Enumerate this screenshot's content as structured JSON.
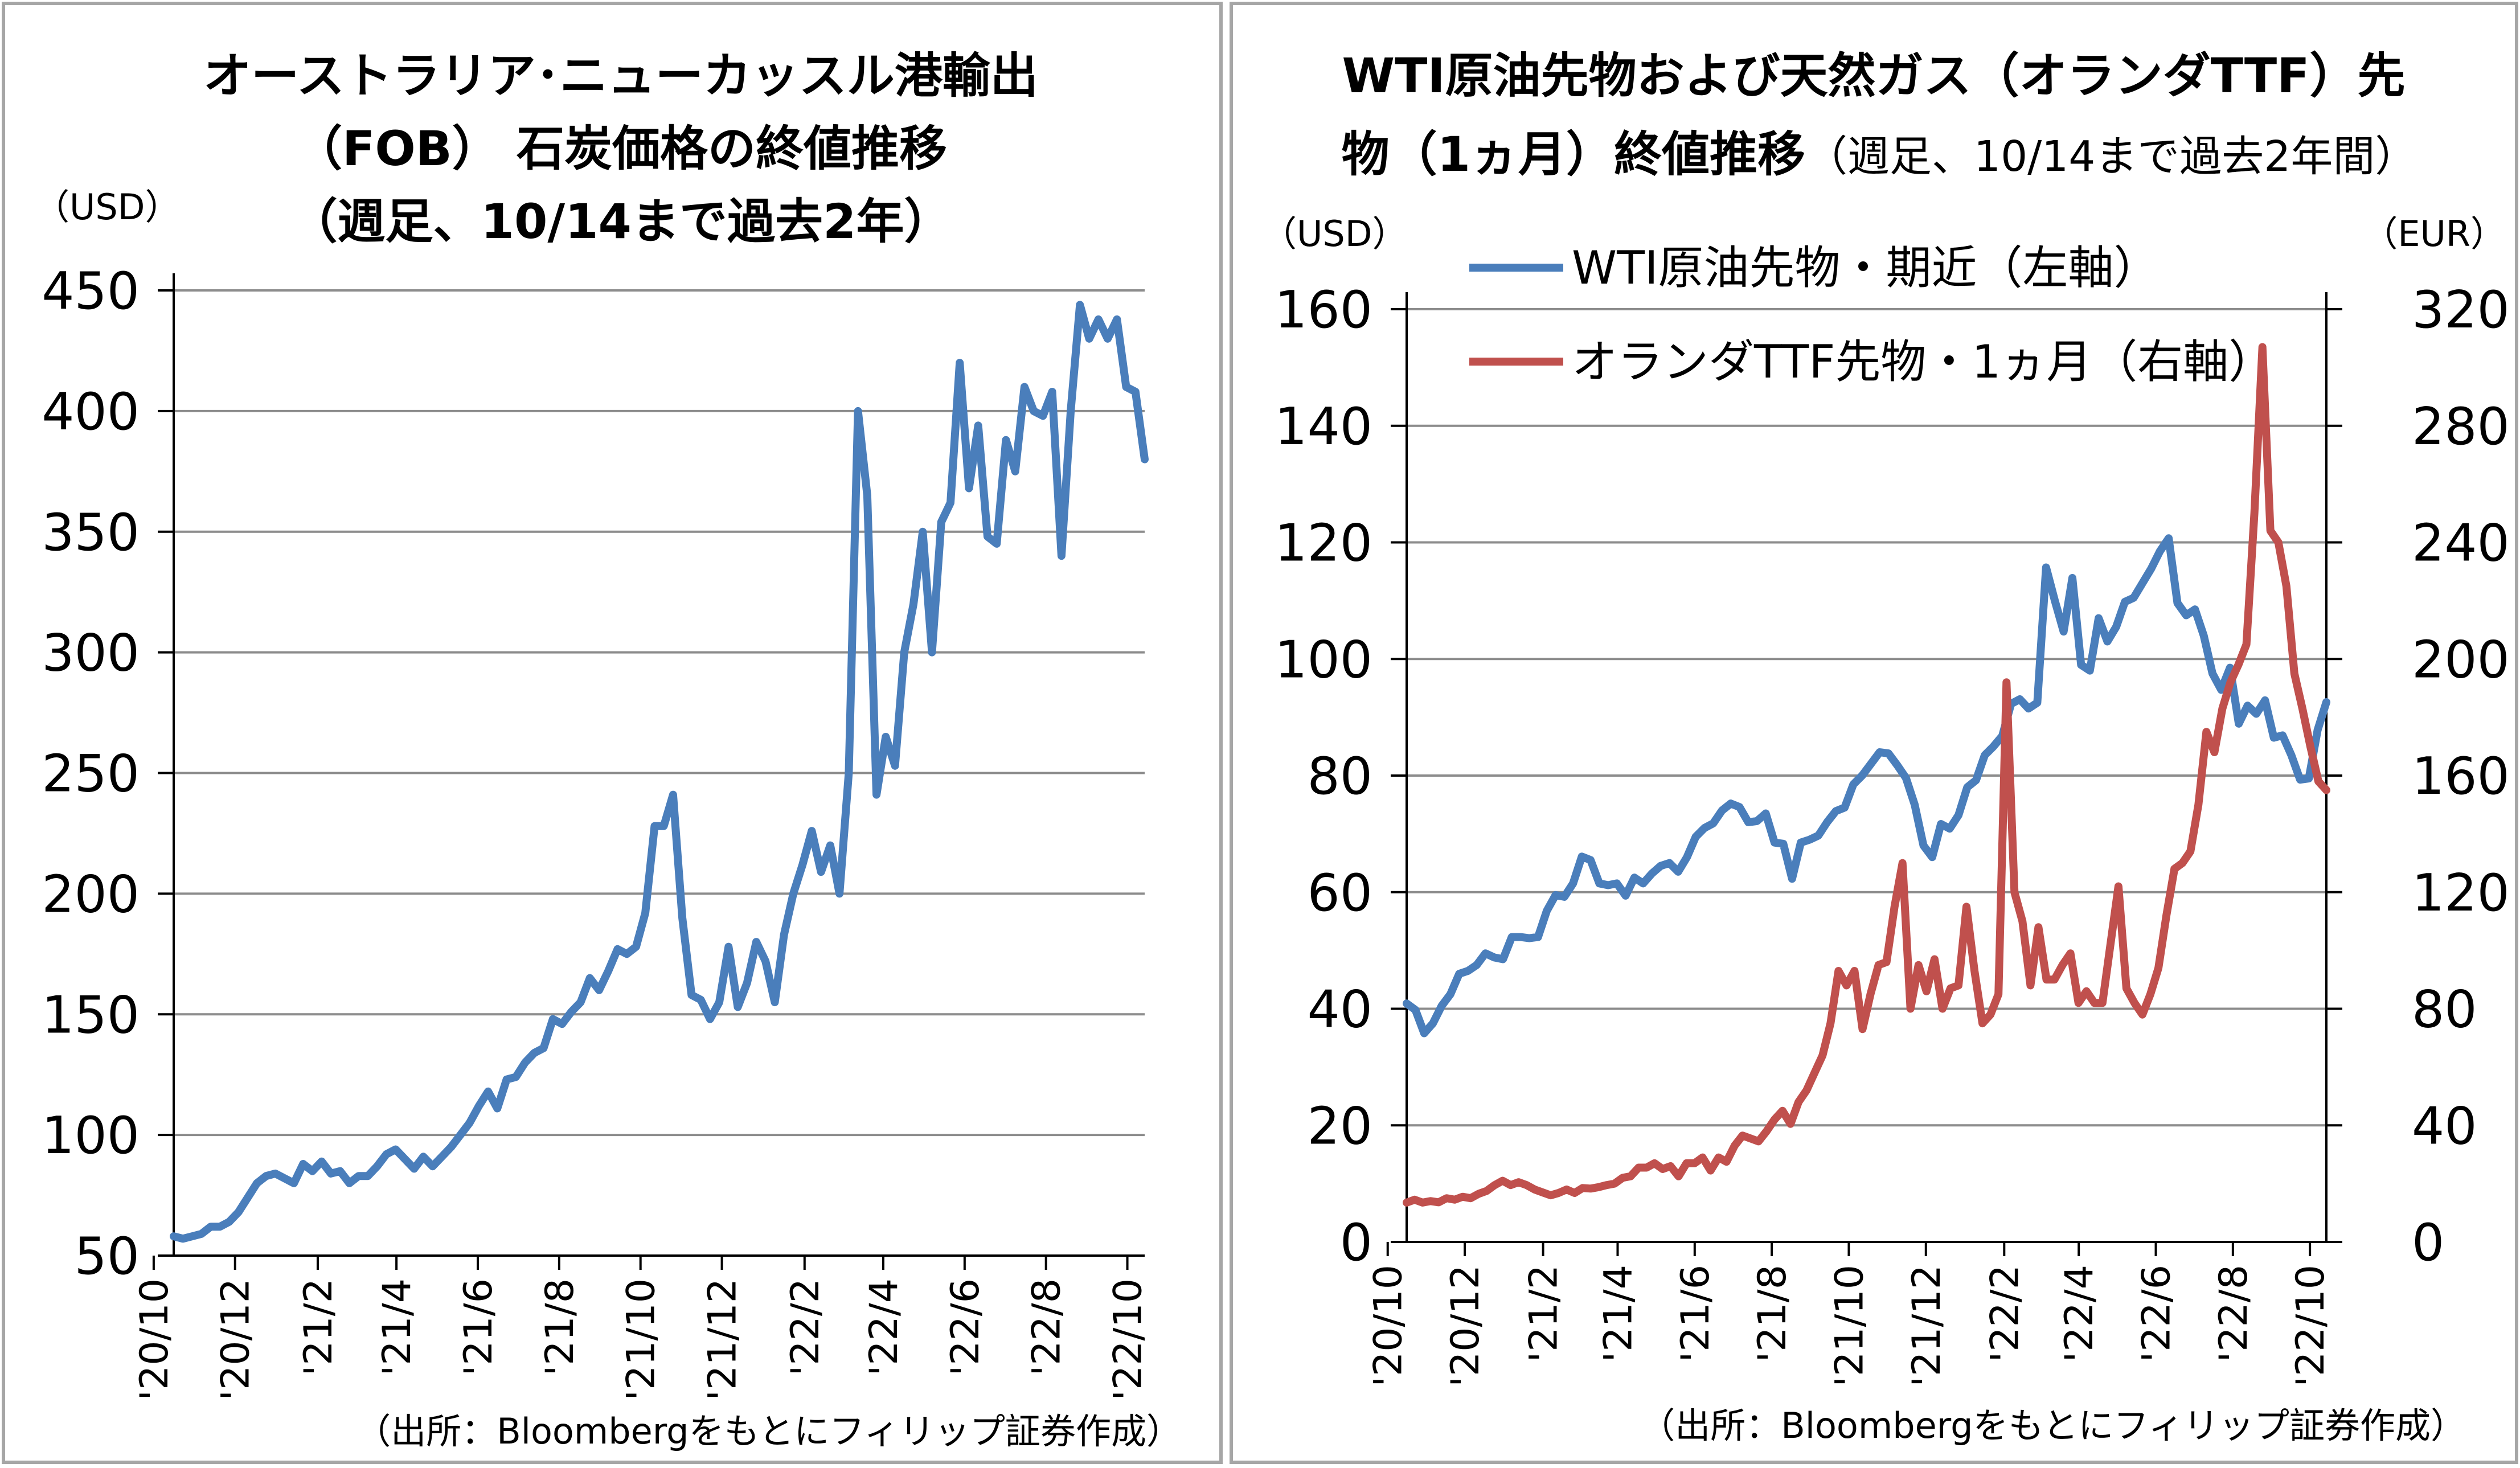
{
  "charts": [
    {
      "title_lines": [
        "オーストラリア･ニューカッスル港輸出",
        "（FOB） 石炭価格の終値推移",
        "（週足、10/14まで過去2年）"
      ],
      "unit_left": "（USD）",
      "source": "（出所：Bloombergをもとにフィリップ証券作成）",
      "x_labels": [
        "'20/10",
        "'20/12",
        "'21/2",
        "'21/4",
        "'21/6",
        "'21/8",
        "'21/10",
        "'21/12",
        "'22/2",
        "'22/4",
        "'22/6",
        "'22/8",
        "'22/10"
      ],
      "y_labels": [
        "50",
        "100",
        "150",
        "200",
        "250",
        "300",
        "350",
        "400",
        "450"
      ]
    },
    {
      "title_line1": "WTI原油先物および天然ガス（オランダTTF）先",
      "title_line2_bold": "物（1ヵ月）終値推移",
      "title_line2_normal": "（週足、10/14まで過去2年間）",
      "unit_left": "（USD）",
      "unit_right": "（EUR）",
      "legend_wti": "WTI原油先物・期近（左軸）",
      "legend_ttf": "オランダTTF先物・1ヵ月（右軸）",
      "source": "（出所：Bloombergをもとにフィリップ証券作成）",
      "x_labels": [
        "'20/10",
        "'20/12",
        "'21/2",
        "'21/4",
        "'21/6",
        "'21/8",
        "'21/10",
        "'21/12",
        "'22/2",
        "'22/4",
        "'22/6",
        "'22/8",
        "'22/10"
      ],
      "y_left_labels": [
        "0",
        "20",
        "40",
        "60",
        "80",
        "100",
        "120",
        "140",
        "160"
      ],
      "y_right_labels": [
        "0",
        "40",
        "80",
        "120",
        "160",
        "200",
        "240",
        "280",
        "320"
      ]
    }
  ],
  "chart_data": [
    {
      "type": "line",
      "title": "オーストラリア･ニューカッスル港輸出（FOB） 石炭価格の終値推移（週足、10/14まで過去2年）",
      "ylabel": "（USD）",
      "ylim": [
        50,
        450
      ],
      "x_range": [
        "2020-10-16",
        "2022-10-14"
      ],
      "grid": true,
      "series": [
        {
          "color": "#4a7ebb",
          "values": [
            58,
            57,
            58,
            59,
            62,
            62,
            64,
            68,
            74,
            80,
            83,
            84,
            82,
            80,
            88,
            85,
            89,
            84,
            85,
            80,
            83,
            83,
            87,
            92,
            94,
            90,
            86,
            91,
            87,
            91,
            95,
            100,
            105,
            112,
            118,
            111,
            123,
            124,
            130,
            134,
            136,
            148,
            146,
            151,
            155,
            165,
            160,
            168,
            177,
            175,
            178,
            192,
            228,
            228,
            241,
            190,
            158,
            156,
            148,
            155,
            178,
            153,
            163,
            180,
            172,
            155,
            183,
            200,
            212,
            226,
            209,
            220,
            200,
            250,
            400,
            365,
            241,
            265,
            253,
            300,
            320,
            350,
            300,
            354,
            362,
            420,
            368,
            394,
            348,
            345,
            388,
            375,
            410,
            400,
            398,
            408,
            340,
            400,
            444,
            430,
            438,
            430,
            438,
            410,
            408,
            380
          ]
        }
      ]
    },
    {
      "type": "line",
      "title": "WTI原油先物および天然ガス（オランダTTF）先物（1ヵ月）終値推移（週足、10/14まで過去2年間）",
      "ylabel": "（USD）",
      "y2label": "（EUR）",
      "ylim": [
        0,
        160
      ],
      "y2lim": [
        0,
        320
      ],
      "x_range": [
        "2020-10-16",
        "2022-10-14"
      ],
      "grid": true,
      "legend_placement": "top-left",
      "series": [
        {
          "name": "WTI原油先物・期近（左軸）",
          "axis": "left",
          "color": "#4a7ebb",
          "values": [
            40.9,
            39.8,
            35.8,
            37.5,
            40.5,
            42.5,
            46,
            46.5,
            47.5,
            49.5,
            48.8,
            48.5,
            52.3,
            52.3,
            52.1,
            52.3,
            56.8,
            59.5,
            59.2,
            61.5,
            66.1,
            65.5,
            61.5,
            61.2,
            61.5,
            59.4,
            62.5,
            61.5,
            63.2,
            64.5,
            65,
            63.5,
            66,
            69.5,
            71,
            71.8,
            74,
            75.2,
            74.6,
            72,
            72.2,
            73.5,
            68.5,
            68.3,
            62.3,
            68.5,
            69,
            69.7,
            72,
            73.9,
            74.5,
            78.5,
            80,
            82,
            84,
            83.8,
            81.8,
            79.6,
            75,
            68,
            66,
            71.7,
            70.9,
            73.2,
            78,
            79.2,
            83.5,
            85,
            86.8,
            92.3,
            93.1,
            91.5,
            92.5,
            115.7,
            110,
            104.7,
            113.9,
            99,
            98,
            107,
            103,
            105.5,
            109.8,
            110.5,
            113,
            115.5,
            118.5,
            120.7,
            109.6,
            107.5,
            108.5,
            104,
            97.5,
            94.7,
            98.5,
            88.9,
            92,
            90.6,
            92.9,
            86.5,
            86.9,
            83.5,
            79.3,
            79.5,
            87.8,
            92.6
          ]
        },
        {
          "name": "オランダTTF先物・1ヵ月（右軸）",
          "axis": "right",
          "color": "#c0504d",
          "values": [
            13.5,
            14.5,
            13.5,
            14,
            13.6,
            15,
            14.5,
            15.5,
            15,
            16.5,
            17.5,
            19.5,
            21,
            19.5,
            20.5,
            19.5,
            18,
            17,
            16,
            16.8,
            18,
            16.8,
            18.5,
            18.3,
            18.8,
            19.5,
            20,
            22,
            22.5,
            25.5,
            25.5,
            27,
            25,
            26,
            22.5,
            27,
            27,
            29,
            24.5,
            29,
            27.5,
            33,
            36.5,
            35.5,
            34.5,
            38,
            42,
            45,
            40.5,
            48,
            52,
            58,
            64,
            75,
            93,
            88,
            93,
            73,
            85,
            95,
            96,
            115,
            130,
            80,
            95,
            86,
            97,
            80,
            87,
            88,
            115,
            93,
            75,
            78,
            85,
            192,
            120,
            110,
            88,
            108,
            90,
            90,
            95,
            99,
            82,
            86,
            82,
            82,
            102,
            122,
            87,
            82,
            78,
            85,
            94,
            112,
            128,
            130,
            134,
            150,
            175,
            168,
            183,
            192,
            198,
            205,
            250,
            307,
            244,
            240,
            225,
            195,
            183,
            170,
            158,
            155
          ]
        }
      ]
    }
  ]
}
